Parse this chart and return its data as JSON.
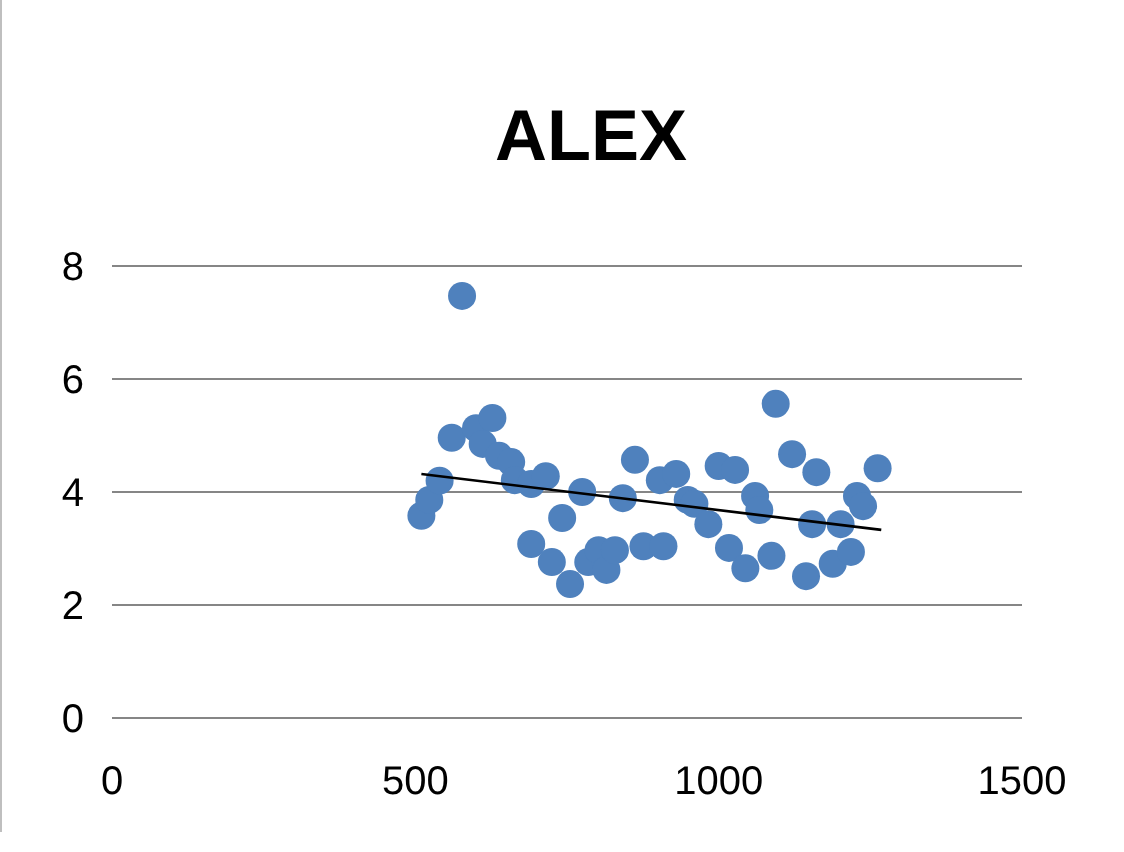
{
  "chart_data": {
    "type": "scatter",
    "title": "ALEX",
    "xlim": [
      0,
      1500
    ],
    "xticks": [
      0,
      500,
      1000,
      1500
    ],
    "ylim": [
      0,
      8
    ],
    "yticks": [
      0,
      2,
      4,
      6,
      8
    ],
    "grid": "y",
    "series": [
      {
        "marker": "circle",
        "color": "#4f81bd",
        "x": [
          510,
          523,
          540,
          560,
          577,
          600,
          627,
          611,
          638,
          658,
          664,
          691,
          691,
          715,
          725,
          742,
          755,
          775,
          785,
          802,
          815,
          829,
          842,
          862,
          876,
          903,
          909,
          930,
          949,
          960,
          983,
          1000,
          1017,
          1027,
          1044,
          1060,
          1067,
          1087,
          1094,
          1121,
          1144,
          1161,
          1154,
          1188,
          1201,
          1218,
          1228,
          1238,
          1262
        ],
        "values": [
          3.58,
          3.86,
          4.2,
          4.96,
          7.47,
          5.13,
          5.31,
          4.85,
          4.64,
          4.53,
          4.21,
          4.14,
          3.08,
          4.28,
          2.76,
          3.54,
          2.37,
          4.0,
          2.76,
          2.97,
          2.62,
          2.97,
          3.89,
          4.57,
          3.04,
          4.21,
          3.04,
          4.32,
          3.86,
          3.79,
          3.43,
          4.46,
          3.01,
          4.39,
          2.65,
          3.93,
          3.68,
          2.87,
          5.56,
          4.67,
          2.51,
          4.35,
          3.43,
          2.73,
          3.43,
          2.94,
          3.93,
          3.75,
          4.42
        ]
      },
      {
        "type": "line",
        "color": "#000000",
        "x": [
          510,
          1268
        ],
        "values": [
          4.32,
          3.33
        ]
      }
    ]
  }
}
